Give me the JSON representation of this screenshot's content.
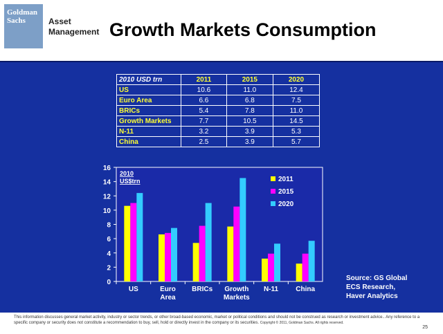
{
  "logo": {
    "line1": "Goldman",
    "line2": "Sachs"
  },
  "brand": {
    "line1": "Asset",
    "line2": "Management"
  },
  "title": "Growth Markets Consumption",
  "table": {
    "header": [
      "2010 USD trn",
      "2011",
      "2015",
      "2020"
    ],
    "rows": [
      {
        "label": "US",
        "values": [
          "10.6",
          "11.0",
          "12.4"
        ]
      },
      {
        "label": "Euro Area",
        "values": [
          "6.6",
          "6.8",
          "7.5"
        ]
      },
      {
        "label": "BRICs",
        "values": [
          "5.4",
          "7.8",
          "11.0"
        ]
      },
      {
        "label": "Growth Markets",
        "values": [
          "7.7",
          "10.5",
          "14.5"
        ]
      },
      {
        "label": "N-11",
        "values": [
          "3.2",
          "3.9",
          "5.3"
        ]
      },
      {
        "label": "China",
        "values": [
          "2.5",
          "3.9",
          "5.7"
        ]
      }
    ]
  },
  "chart_data": {
    "type": "bar",
    "units_line1": "2010",
    "units_line2": "US$trn",
    "categories": [
      [
        "US"
      ],
      [
        "Euro",
        "Area"
      ],
      [
        "BRICs"
      ],
      [
        "Growth",
        "Markets"
      ],
      [
        "N-11"
      ],
      [
        "China"
      ]
    ],
    "series": [
      {
        "name": "2011",
        "color": "#ffff00",
        "values": [
          10.6,
          6.6,
          5.4,
          7.7,
          3.2,
          2.5
        ]
      },
      {
        "name": "2015",
        "color": "#ff00ff",
        "values": [
          11.0,
          6.8,
          7.8,
          10.5,
          3.9,
          3.9
        ]
      },
      {
        "name": "2020",
        "color": "#33ccff",
        "values": [
          12.4,
          7.5,
          11.0,
          14.5,
          5.3,
          5.7
        ]
      }
    ],
    "ylim": [
      0,
      16
    ],
    "yticks": [
      0,
      2,
      4,
      6,
      8,
      10,
      12,
      14,
      16
    ],
    "legend_position": "top-right",
    "grid": false
  },
  "source": {
    "line1": "Source: GS Global",
    "line2": "ECS Research,",
    "line3": "Haver Analytics"
  },
  "footer": {
    "disclaimer": "This information discusses general market activity, industry or sector trends, or other broad-based economic, market or political conditions and should not be construed as research or investment advice.. Any reference to a specific company or security does not constitute a recommendation to buy, sell, hold or directly invest in the company or its securities.",
    "copyright": "Copyright © 2011, Goldman Sachs. All rights reserved.",
    "page": "25"
  }
}
